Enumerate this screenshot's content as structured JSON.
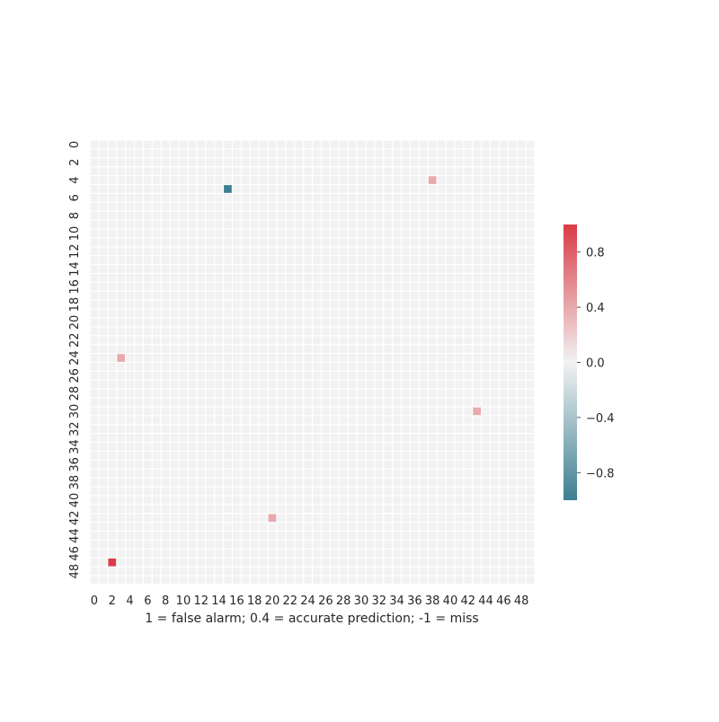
{
  "chart_data": {
    "type": "heatmap",
    "title": "",
    "xlabel": "1 = false alarm; 0.4 = accurate prediction; -1 = miss",
    "ylabel": "",
    "rows": 50,
    "cols": 50,
    "x_ticks": [
      0,
      2,
      4,
      6,
      8,
      10,
      12,
      14,
      16,
      18,
      20,
      22,
      24,
      26,
      28,
      30,
      32,
      34,
      36,
      38,
      40,
      42,
      44,
      46,
      48
    ],
    "y_ticks": [
      0,
      2,
      4,
      6,
      8,
      10,
      12,
      14,
      16,
      18,
      20,
      22,
      24,
      26,
      28,
      30,
      32,
      34,
      36,
      38,
      40,
      42,
      44,
      46,
      48
    ],
    "default_value": 0,
    "nonzero_cells": [
      {
        "row": 4,
        "col": 38,
        "value": 0.4
      },
      {
        "row": 5,
        "col": 15,
        "value": -1
      },
      {
        "row": 24,
        "col": 3,
        "value": 0.4
      },
      {
        "row": 30,
        "col": 43,
        "value": 0.4
      },
      {
        "row": 42,
        "col": 20,
        "value": 0.4
      },
      {
        "row": 47,
        "col": 2,
        "value": 1
      }
    ],
    "vmin": -1,
    "vmax": 1,
    "colorbar": {
      "ticks": [
        0.8,
        0.4,
        0.0,
        -0.4,
        -0.8
      ],
      "tick_labels": [
        "0.8",
        "0.4",
        "0.0",
        "−0.4",
        "−0.8"
      ],
      "colors": {
        "low": "#3d7f92",
        "mid": "#f2f2f2",
        "high": "#da3b46"
      }
    },
    "grid_line_color": "#ffffff",
    "cell_gap": "white",
    "legend": "right"
  }
}
